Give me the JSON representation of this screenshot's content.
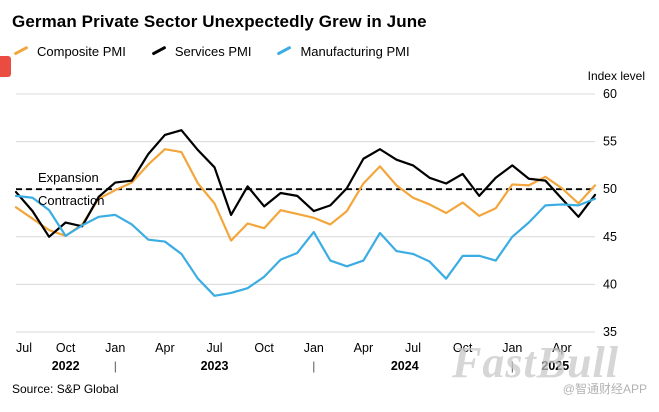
{
  "title": "German Private Sector Unexpectedly Grew in June",
  "legend": [
    {
      "label": "Composite PMI",
      "color": "#F3A63B"
    },
    {
      "label": "Services PMI",
      "color": "#000000"
    },
    {
      "label": "Manufacturing PMI",
      "color": "#3BADE3"
    }
  ],
  "axis": {
    "index_label": "Index level"
  },
  "annotations": {
    "expansion": "Expansion",
    "contraction": "Contraction"
  },
  "source": "Source: S&P Global",
  "watermark": "FastBull",
  "credit": "@智通财经APP",
  "colors": {
    "gridline": "#d8d8d8",
    "threshold": "#000000",
    "text": "#000000"
  },
  "chart_data": {
    "type": "line",
    "x": [
      "2022-07",
      "2022-08",
      "2022-09",
      "2022-10",
      "2022-11",
      "2022-12",
      "2023-01",
      "2023-02",
      "2023-03",
      "2023-04",
      "2023-05",
      "2023-06",
      "2023-07",
      "2023-08",
      "2023-09",
      "2023-10",
      "2023-11",
      "2023-12",
      "2024-01",
      "2024-02",
      "2024-03",
      "2024-04",
      "2024-05",
      "2024-06",
      "2024-07",
      "2024-08",
      "2024-09",
      "2024-10",
      "2024-11",
      "2024-12",
      "2025-01",
      "2025-02",
      "2025-03",
      "2025-04",
      "2025-05",
      "2025-06"
    ],
    "month_tick_indices": [
      0,
      3,
      6,
      9,
      12,
      15,
      18,
      21,
      24,
      27,
      30,
      33
    ],
    "month_ticks": [
      "Jul",
      "Oct",
      "Jan",
      "Apr",
      "Jul",
      "Oct",
      "Jan",
      "Apr",
      "Jul",
      "Oct",
      "Jan",
      "Apr"
    ],
    "year_separator_indices": [
      6,
      18,
      30
    ],
    "year_ticks": [
      {
        "label": "2022",
        "center_index": 3
      },
      {
        "label": "2023",
        "center_index": 12
      },
      {
        "label": "2024",
        "center_index": 23.5
      },
      {
        "label": "2025",
        "center_index": 32.6
      }
    ],
    "ylim": [
      35,
      60
    ],
    "yticks": [
      35,
      40,
      45,
      50,
      55,
      60
    ],
    "threshold": 50,
    "grid": true,
    "legend_position": "top",
    "series": [
      {
        "name": "Composite PMI",
        "color": "#F3A63B",
        "values": [
          48.1,
          46.9,
          45.7,
          45.1,
          46.3,
          49.0,
          49.9,
          50.7,
          52.6,
          54.2,
          53.9,
          50.6,
          48.5,
          44.6,
          46.4,
          45.9,
          47.8,
          47.4,
          47.0,
          46.3,
          47.7,
          50.6,
          52.4,
          50.4,
          49.1,
          48.4,
          47.5,
          48.6,
          47.2,
          48.0,
          50.5,
          50.4,
          51.3,
          50.1,
          48.5,
          50.4
        ]
      },
      {
        "name": "Services PMI",
        "color": "#000000",
        "values": [
          49.7,
          47.7,
          45.0,
          46.5,
          46.1,
          49.2,
          50.7,
          50.9,
          53.7,
          55.7,
          56.2,
          54.1,
          52.3,
          47.3,
          50.3,
          48.2,
          49.6,
          49.3,
          47.7,
          48.3,
          50.1,
          53.2,
          54.2,
          53.1,
          52.5,
          51.2,
          50.6,
          51.6,
          49.3,
          51.2,
          52.5,
          51.1,
          50.9,
          49.0,
          47.1,
          49.4
        ]
      },
      {
        "name": "Manufacturing PMI",
        "color": "#3BADE3",
        "values": [
          49.3,
          49.1,
          47.8,
          45.1,
          46.2,
          47.1,
          47.3,
          46.3,
          44.7,
          44.5,
          43.2,
          40.6,
          38.8,
          39.1,
          39.6,
          40.8,
          42.6,
          43.3,
          45.5,
          42.5,
          41.9,
          42.5,
          45.4,
          43.5,
          43.2,
          42.4,
          40.6,
          43.0,
          43.0,
          42.5,
          45.0,
          46.5,
          48.3,
          48.4,
          48.3,
          49.0
        ]
      }
    ]
  }
}
